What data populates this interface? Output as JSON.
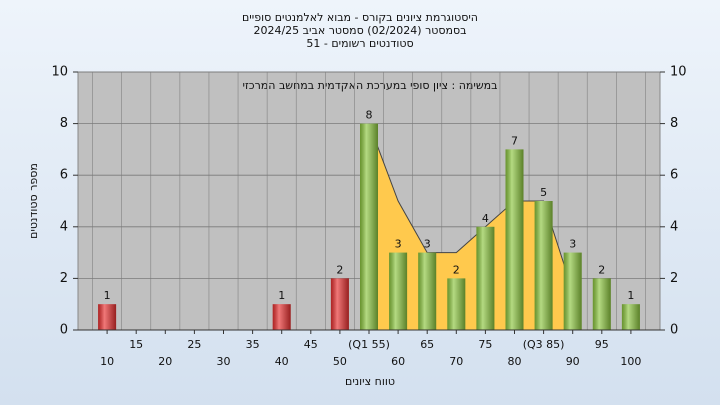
{
  "chart_data": {
    "type": "bar",
    "title": [
      "היסטוגרמת ציונים בקורס - מבוא לאלמנטים סופיים",
      "בסמסטר  (02/2024)  סמסטר אביב 2024/25",
      "סטודנטים רשומים - 51"
    ],
    "annotation": "במשימה : ציון סופי במערכת האקדמית במחשב המרכזי",
    "x_label": "טווח ציונים",
    "y_label": "מספר סטודנטים",
    "categories": [
      "10",
      "15",
      "20",
      "25",
      "30",
      "35",
      "40",
      "45",
      "50",
      "(Q1 55)",
      "60",
      "65",
      "70",
      "75",
      "80",
      "(Q3 85)",
      "90",
      "95",
      "100"
    ],
    "values": [
      1,
      0,
      0,
      0,
      0,
      0,
      1,
      0,
      2,
      8,
      3,
      3,
      2,
      4,
      7,
      5,
      3,
      2,
      1
    ],
    "colors": [
      "#e83030",
      "#e83030",
      "#e83030",
      "#e83030",
      "#e83030",
      "#e83030",
      "#e83030",
      "#e83030",
      "#e83030",
      "#8cc63f",
      "#8cc63f",
      "#8cc63f",
      "#8cc63f",
      "#8cc63f",
      "#8cc63f",
      "#8cc63f",
      "#8cc63f",
      "#8cc63f",
      "#8cc63f"
    ],
    "area_values": [
      null,
      null,
      null,
      null,
      null,
      null,
      null,
      null,
      null,
      8,
      5,
      3,
      3,
      4,
      5,
      5,
      1.5,
      null,
      null
    ],
    "area_color": "#ffc94d",
    "ylim": [
      0,
      10
    ],
    "yticks": [
      0,
      2,
      4,
      6,
      8,
      10
    ],
    "y2lim": [
      0,
      10
    ],
    "y2ticks": [
      0,
      2,
      4,
      6,
      8,
      10
    ],
    "grid": true
  }
}
